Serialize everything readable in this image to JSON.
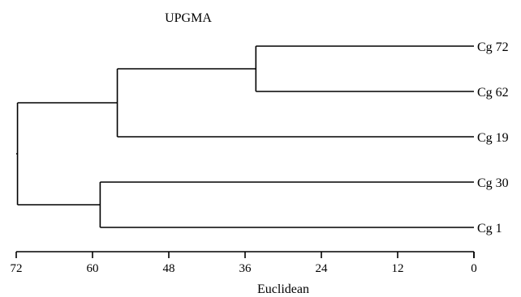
{
  "chart_data": {
    "type": "dendrogram",
    "title": "UPGMA",
    "xlabel": "Euclidean",
    "x_direction": "reversed",
    "xlim": [
      72,
      0
    ],
    "ticks": [
      72,
      60,
      48,
      36,
      24,
      12,
      0
    ],
    "tick_labels": [
      "72",
      "60",
      "48",
      "36",
      "24",
      "12",
      "0"
    ],
    "leaves": [
      "Cg 72",
      "Cg 62",
      "Cg 19",
      "Cg 30",
      "Cg 1"
    ],
    "merges": [
      {
        "id": "n1",
        "children": [
          "Cg 72",
          "Cg 62"
        ],
        "height": 34.3
      },
      {
        "id": "n2",
        "children": [
          "n1",
          "Cg 19"
        ],
        "height": 56.1
      },
      {
        "id": "n3",
        "children": [
          "Cg 30",
          "Cg 1"
        ],
        "height": 58.8
      },
      {
        "id": "n4",
        "children": [
          "n2",
          "n3"
        ],
        "height": 71.8
      }
    ]
  }
}
